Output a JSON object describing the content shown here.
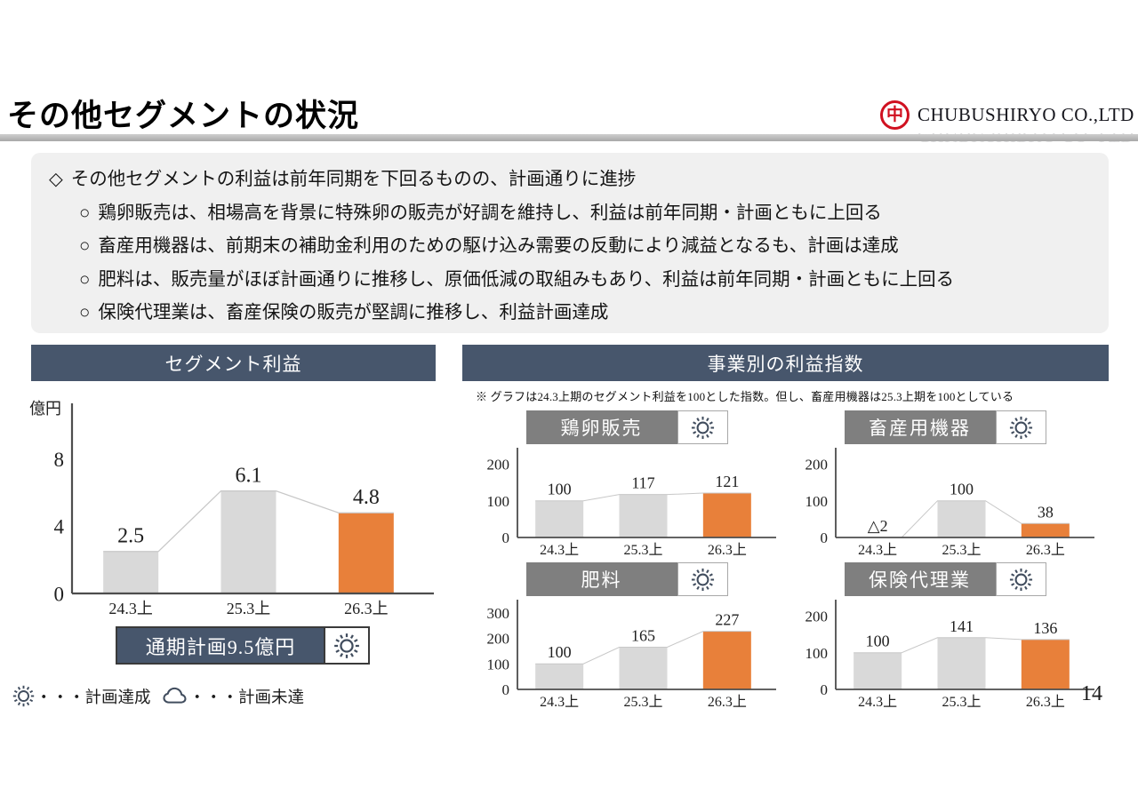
{
  "slide": {
    "page_number": "14"
  },
  "header": {
    "title": "その他セグメントの状況",
    "company": "CHUBUSHIRYO CO.,LTD",
    "logo_glyph": "中"
  },
  "summary": {
    "lines": [
      {
        "marker": "◇",
        "text": "その他セグメントの利益は前年同期を下回るものの、計画通りに進捗"
      },
      {
        "marker": "○",
        "text": "鶏卵販売は、相場高を背景に特殊卵の販売が好調を維持し、利益は前年同期・計画ともに上回る"
      },
      {
        "marker": "○",
        "text": "畜産用機器は、前期末の補助金利用のための駆け込み需要の反動により減益となるも、計画は達成"
      },
      {
        "marker": "○",
        "text": "肥料は、販売量がほぼ計画通りに推移し、原価低減の取組みもあり、利益は前年同期・計画ともに上回る"
      },
      {
        "marker": "○",
        "text": "保険代理業は、畜産保険の販売が堅調に推移し、利益計画達成"
      }
    ]
  },
  "panels": {
    "segment_profit": {
      "title": "セグメント利益",
      "plan_label": "通期計画9.5億円",
      "plan_status": "計画達成"
    },
    "business_index": {
      "title": "事業別の利益指数",
      "note": "※ グラフは24.3上期のセグメント利益を100とした指数。但し、畜産用機器は25.3上期を100としている"
    }
  },
  "legend": {
    "achieved_label": "・・・計画達成",
    "missed_label": "・・・計画未達"
  },
  "colors": {
    "navy": "#47566c",
    "gray": "#d9d9d9",
    "orange": "#e8803a",
    "header_gray": "#7f7f7f",
    "line": "#c8c8c8",
    "axis": "#4d4d4d",
    "logo_red": "#d01020",
    "icon": "#414d5e"
  },
  "chart_data": [
    {
      "type": "bar",
      "title": "セグメント利益",
      "ylabel": "億円",
      "categories": [
        "24.3上",
        "25.3上",
        "26.3上"
      ],
      "values": [
        2.5,
        6.1,
        4.8
      ],
      "value_labels": [
        "2.5",
        "6.1",
        "4.8"
      ],
      "yticks": [
        0,
        4,
        8
      ],
      "ylim": [
        0,
        11
      ],
      "bar_colors": [
        "gray",
        "gray",
        "orange"
      ],
      "line_overlay": true,
      "status_icon": "sun",
      "grid": false,
      "legend_position": "none"
    },
    {
      "type": "bar",
      "title": "鶏卵販売",
      "categories": [
        "24.3上",
        "25.3上",
        "26.3上"
      ],
      "values": [
        100,
        117,
        121
      ],
      "value_labels": [
        "100",
        "117",
        "121"
      ],
      "yticks": [
        0,
        100,
        200
      ],
      "ylim": [
        0,
        230
      ],
      "bar_colors": [
        "gray",
        "gray",
        "orange"
      ],
      "line_overlay": true,
      "status_icon": "sun",
      "grid": false
    },
    {
      "type": "bar",
      "title": "畜産用機器",
      "categories": [
        "24.3上",
        "25.3上",
        "26.3上"
      ],
      "values": [
        -2,
        100,
        38
      ],
      "value_labels": [
        "△2",
        "100",
        "38"
      ],
      "yticks": [
        0,
        100,
        200
      ],
      "ylim": [
        0,
        230
      ],
      "bar_colors": [
        "gray",
        "gray",
        "orange"
      ],
      "line_overlay": true,
      "status_icon": "sun",
      "grid": false
    },
    {
      "type": "bar",
      "title": "肥料",
      "categories": [
        "24.3上",
        "25.3上",
        "26.3上"
      ],
      "values": [
        100,
        165,
        227
      ],
      "value_labels": [
        "100",
        "165",
        "227"
      ],
      "yticks": [
        0,
        100,
        200,
        300
      ],
      "ylim": [
        0,
        330
      ],
      "bar_colors": [
        "gray",
        "gray",
        "orange"
      ],
      "line_overlay": true,
      "status_icon": "sun",
      "grid": false
    },
    {
      "type": "bar",
      "title": "保険代理業",
      "categories": [
        "24.3上",
        "25.3上",
        "26.3上"
      ],
      "values": [
        100,
        141,
        136
      ],
      "value_labels": [
        "100",
        "141",
        "136"
      ],
      "yticks": [
        0,
        100,
        200
      ],
      "ylim": [
        0,
        230
      ],
      "bar_colors": [
        "gray",
        "gray",
        "orange"
      ],
      "line_overlay": true,
      "status_icon": "sun",
      "grid": false
    }
  ]
}
